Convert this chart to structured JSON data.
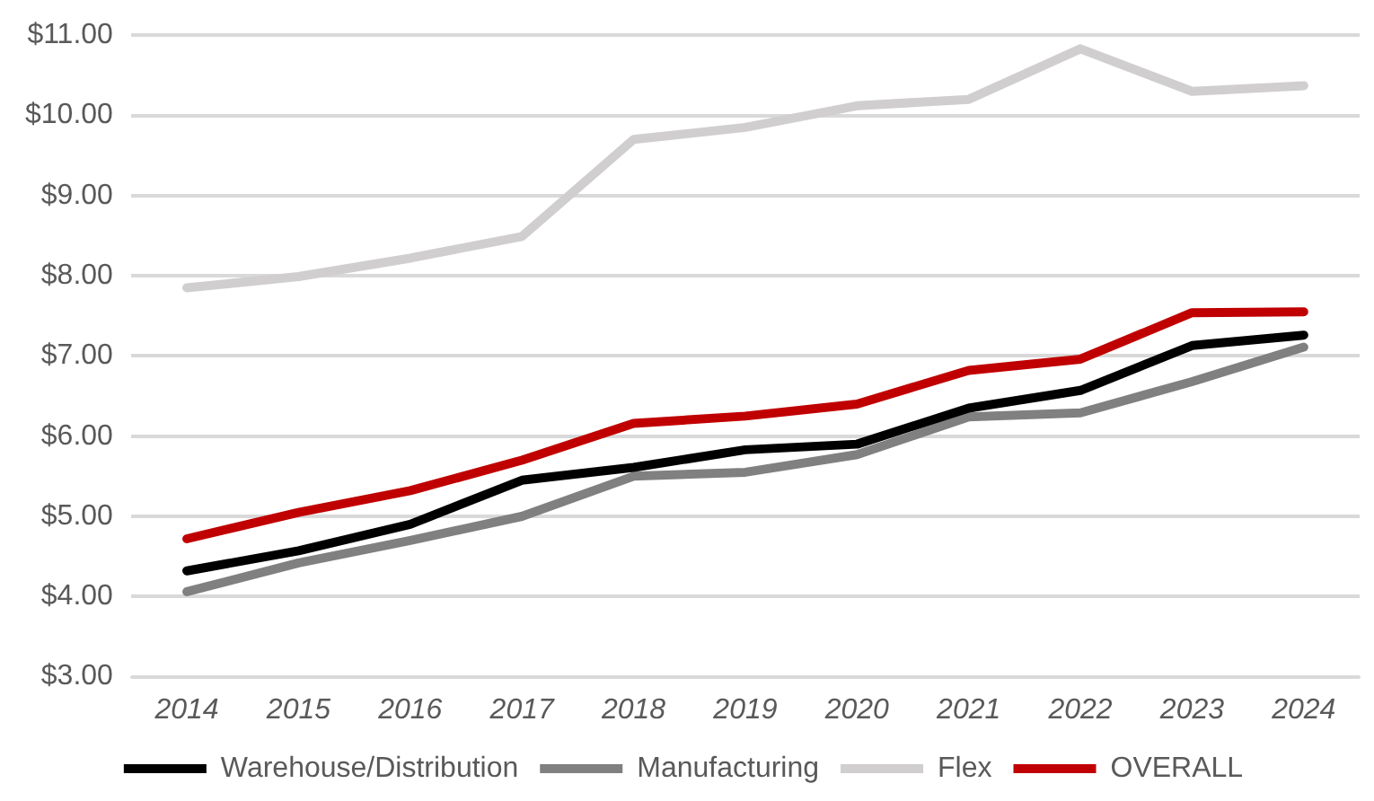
{
  "chart_data": {
    "type": "line",
    "categories": [
      "2014",
      "2015",
      "2016",
      "2017",
      "2018",
      "2019",
      "2020",
      "2021",
      "2022",
      "2023",
      "2024"
    ],
    "series": [
      {
        "name": "Warehouse/Distribution",
        "color": "#000000",
        "values": [
          4.32,
          4.57,
          4.9,
          5.45,
          5.61,
          5.83,
          5.9,
          6.35,
          6.57,
          7.13,
          7.26
        ]
      },
      {
        "name": "Manufacturing",
        "color": "#808080",
        "values": [
          4.06,
          4.42,
          4.7,
          5.0,
          5.5,
          5.55,
          5.77,
          6.24,
          6.29,
          6.68,
          7.11
        ]
      },
      {
        "name": "Flex",
        "color": "#d0cece",
        "values": [
          7.85,
          7.99,
          8.22,
          8.49,
          9.7,
          9.85,
          10.12,
          10.2,
          10.83,
          10.3,
          10.37
        ]
      },
      {
        "name": "OVERALL",
        "color": "#c00000",
        "values": [
          4.72,
          5.05,
          5.32,
          5.7,
          6.16,
          6.25,
          6.4,
          6.82,
          6.96,
          7.54,
          7.55
        ]
      }
    ],
    "ylim": [
      3,
      11
    ],
    "yticks": [
      {
        "value": 3,
        "label": "$3.00"
      },
      {
        "value": 4,
        "label": "$4.00"
      },
      {
        "value": 5,
        "label": "$5.00"
      },
      {
        "value": 6,
        "label": "$6.00"
      },
      {
        "value": 7,
        "label": "$7.00"
      },
      {
        "value": 8,
        "label": "$8.00"
      },
      {
        "value": 9,
        "label": "$9.00"
      },
      {
        "value": 10,
        "label": "$10.00"
      },
      {
        "value": 11,
        "label": "$11.00"
      }
    ],
    "grid": "y",
    "legend": "bottom",
    "marker": "none",
    "line_style": "solid"
  }
}
